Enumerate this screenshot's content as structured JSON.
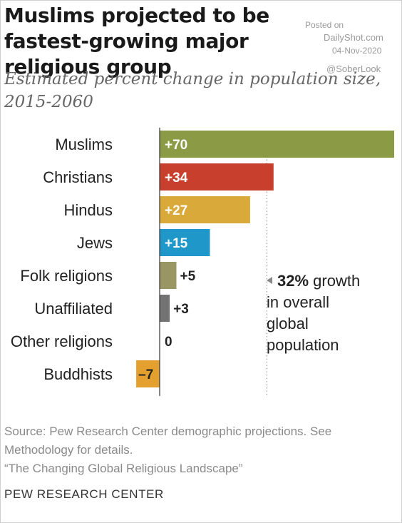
{
  "header": {
    "title": "Muslims projected to be fastest-growing major religious group",
    "subtitle": "Estimated percent change in population size, 2015-2060"
  },
  "watermark": {
    "posted_on": "Posted on",
    "site": "DailyShot.com",
    "date": "04-Nov-2020",
    "handle": "@SoberLook"
  },
  "chart_data": {
    "type": "bar",
    "orientation": "horizontal",
    "categories": [
      "Muslims",
      "Christians",
      "Hindus",
      "Jews",
      "Folk religions",
      "Unaffiliated",
      "Other religions",
      "Buddhists"
    ],
    "values": [
      70,
      34,
      27,
      15,
      5,
      3,
      0,
      -7
    ],
    "data_labels": [
      "+70",
      "+34",
      "+27",
      "+15",
      "+5",
      "+3",
      "0",
      "–7"
    ],
    "colors": [
      "#8b9a45",
      "#c8402d",
      "#d9a93a",
      "#1f97c8",
      "#9a9663",
      "#737373",
      "#737373",
      "#e3a02e"
    ],
    "reference_line": {
      "value": 32
    },
    "xlim": [
      -7,
      70
    ],
    "grid": false,
    "annotation": {
      "highlight": "32%",
      "lines": [
        "growth",
        "in overall",
        "global",
        "population"
      ]
    }
  },
  "source": {
    "line1": "Source: Pew Research Center demographic projections. See Methodology for details.",
    "line2": "“The Changing Global Religious Landscape”"
  },
  "footer": {
    "brand": "PEW RESEARCH CENTER"
  }
}
